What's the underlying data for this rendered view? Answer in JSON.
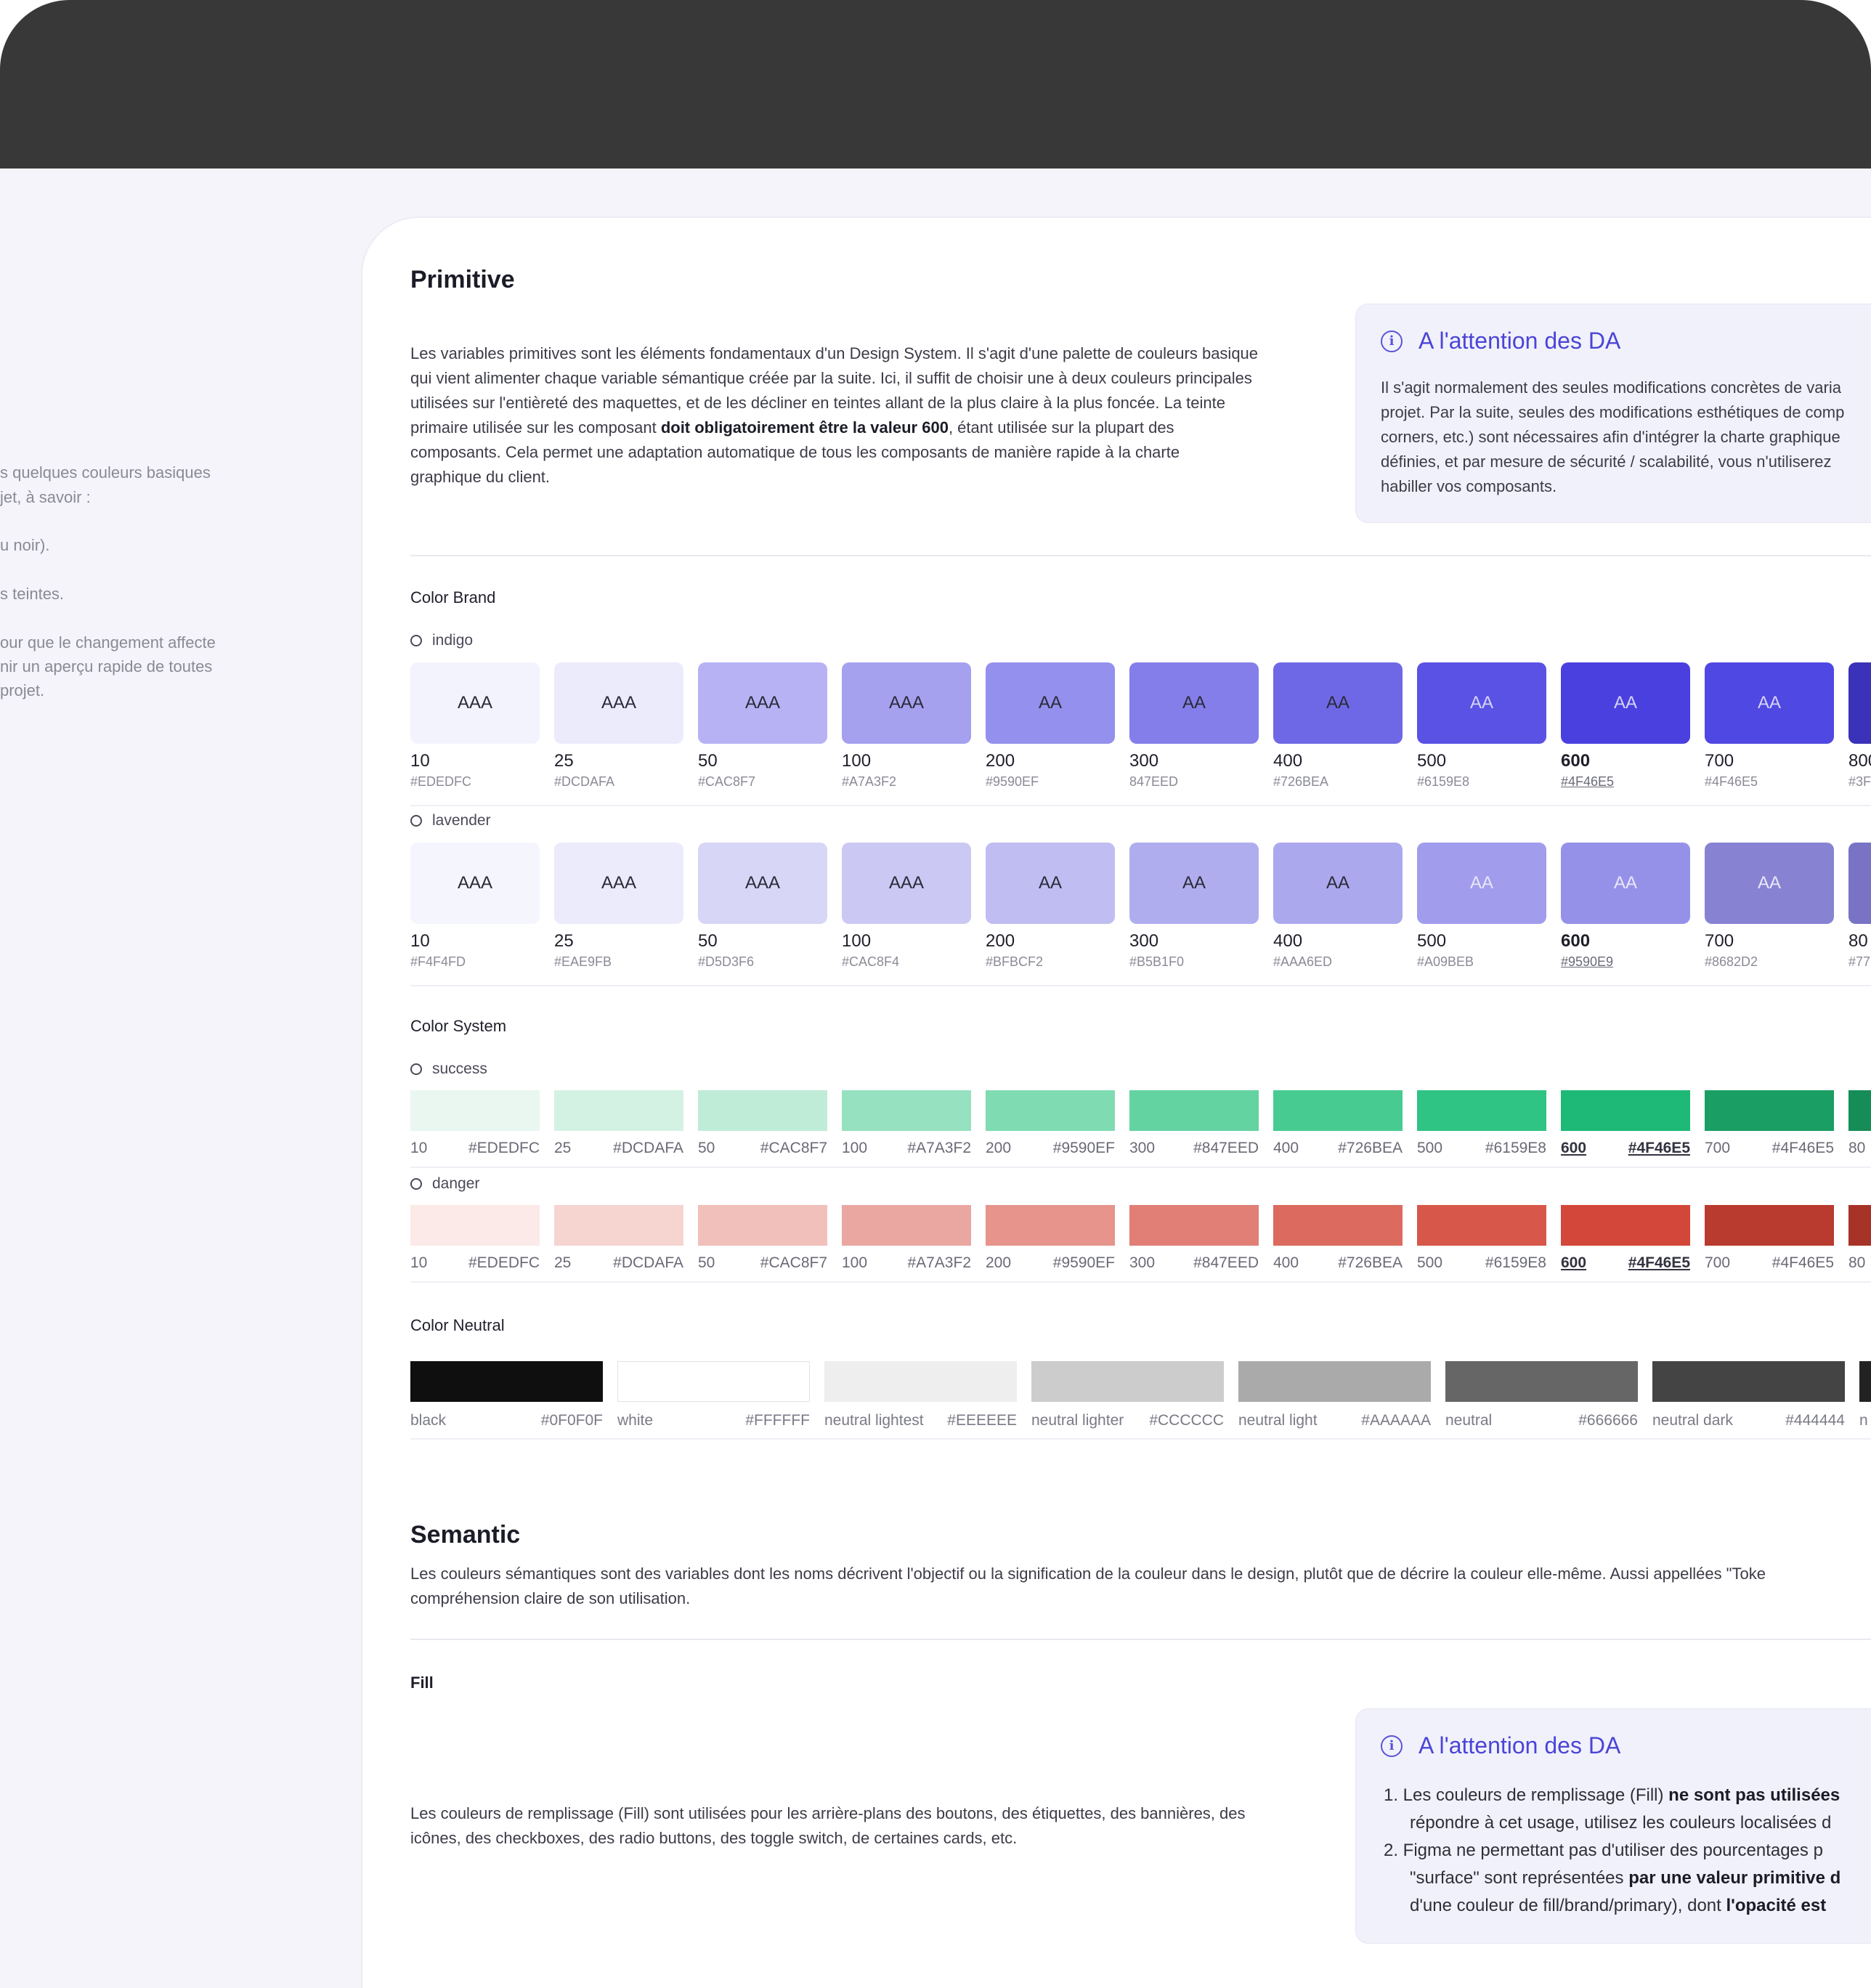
{
  "left_panel": {
    "lines": [
      "s quelques couleurs basiques",
      "jet, à savoir :",
      "u noir).",
      "s teintes.",
      "our que le changement affecte",
      "nir un aperçu rapide de toutes",
      " projet."
    ]
  },
  "primitive": {
    "title": "Primitive",
    "intro_lines": [
      "Les variables primitives sont les éléments fondamentaux d'un Design System. Il s'agit d'une palette de couleurs basique",
      "qui vient alimenter chaque variable sémantique créée par la suite. Ici, il suffit de choisir une à deux couleurs principales",
      "utilisées sur l'entièreté des maquettes, et de les décliner en teintes allant de la plus claire à la plus foncée. La teinte"
    ],
    "intro_l4_a": "primaire utilisée sur les composant ",
    "intro_l4_b": "doit obligatoirement être la valeur 600",
    "intro_l4_c": ", étant utilisée sur la plupart des",
    "intro_l5": "composants. Cela permet une adaptation automatique de tous les composants de manière rapide à la charte",
    "intro_l6": "graphique du client.",
    "callout": {
      "title": "A l'attention des DA",
      "lines": [
        "Il s'agit normalement des seules modifications concrètes de varia",
        "projet. Par la suite, seules des modifications esthétiques de comp",
        "corners, etc.) sont nécessaires afin d'intégrer la charte graphique",
        "définies, et par mesure de sécurité / scalabilité, vous n'utiliserez",
        "habiller vos composants."
      ]
    },
    "color_brand": {
      "label": "Color Brand",
      "groups": [
        {
          "name": "indigo",
          "swatches": [
            {
              "label": "AAA",
              "step": "10",
              "hex": "#EDEDFC",
              "color": "#f3f3fe",
              "text": "#2a2a38"
            },
            {
              "label": "AAA",
              "step": "25",
              "hex": "#DCDAFA",
              "color": "#ebebfc",
              "text": "#2a2a38"
            },
            {
              "label": "AAA",
              "step": "50",
              "hex": "#CAC8F7",
              "color": "#b6b2f4",
              "text": "#2a2a38"
            },
            {
              "label": "AAA",
              "step": "100",
              "hex": "#A7A3F2",
              "color": "#a5a1ef",
              "text": "#2a2a38"
            },
            {
              "label": "AA",
              "step": "200",
              "hex": "#9590EF",
              "color": "#9490ee",
              "text": "#2a2a38"
            },
            {
              "label": "AA",
              "step": "300",
              "hex": "847EED",
              "color": "#847eea",
              "text": "#2a2a38"
            },
            {
              "label": "AA",
              "step": "400",
              "hex": "#726BEA",
              "color": "#6f68e6",
              "text": "#2a2a38"
            },
            {
              "label": "AA",
              "step": "500",
              "hex": "#6159E8",
              "color": "#5a52e4",
              "text": "#d6d4f8"
            },
            {
              "label": "AA",
              "step": "600",
              "hex": "#4F46E5",
              "color": "#4a40e0",
              "text": "#d6d4f8",
              "primary": true
            },
            {
              "label": "AA",
              "step": "700",
              "hex": "#4F46E5",
              "color": "#5048e2",
              "text": "#d6d4f8"
            },
            {
              "label": "",
              "step": "800",
              "hex": "#3F",
              "color": "#3a32b8",
              "text": "#d6d4f8"
            }
          ]
        },
        {
          "name": "lavender",
          "swatches": [
            {
              "label": "AAA",
              "step": "10",
              "hex": "#F4F4FD",
              "color": "#f5f5fd",
              "text": "#2a2a38"
            },
            {
              "label": "AAA",
              "step": "25",
              "hex": "#EAE9FB",
              "color": "#ecebfb",
              "text": "#2a2a38"
            },
            {
              "label": "AAA",
              "step": "50",
              "hex": "#D5D3F6",
              "color": "#d8d6f6",
              "text": "#2a2a38"
            },
            {
              "label": "AAA",
              "step": "100",
              "hex": "#CAC8F4",
              "color": "#cbc8f4",
              "text": "#2a2a38"
            },
            {
              "label": "AA",
              "step": "200",
              "hex": "#BFBCF2",
              "color": "#c0bdf2",
              "text": "#2a2a38"
            },
            {
              "label": "AA",
              "step": "300",
              "hex": "#B5B1F0",
              "color": "#b0adef",
              "text": "#2a2a38"
            },
            {
              "label": "AA",
              "step": "400",
              "hex": "#AAA6ED",
              "color": "#aca8ed",
              "text": "#2a2a38"
            },
            {
              "label": "AA",
              "step": "500",
              "hex": "#A09BEB",
              "color": "#a19ceb",
              "text": "#e8e7fb"
            },
            {
              "label": "AA",
              "step": "600",
              "hex": "#9590E9",
              "color": "#9691e8",
              "text": "#e8e7fb",
              "primary": true
            },
            {
              "label": "AA",
              "step": "700",
              "hex": "#8682D2",
              "color": "#8783d2",
              "text": "#e8e7fb"
            },
            {
              "label": "",
              "step": "80",
              "hex": "#77",
              "color": "#7873c4",
              "text": "#e8e7fb"
            }
          ]
        }
      ]
    },
    "color_system": {
      "label": "Color System",
      "groups": [
        {
          "name": "success",
          "swatches": [
            {
              "step": "10",
              "hex": "#EDEDFC",
              "color": "#e9f7f0"
            },
            {
              "step": "25",
              "hex": "#DCDAFA",
              "color": "#d4f2e4"
            },
            {
              "step": "50",
              "hex": "#CAC8F7",
              "color": "#bfecd7"
            },
            {
              "step": "100",
              "hex": "#A7A3F2",
              "color": "#96e1c0"
            },
            {
              "step": "200",
              "hex": "#9590EF",
              "color": "#7fdbb2"
            },
            {
              "step": "300",
              "hex": "#847EED",
              "color": "#63d3a2"
            },
            {
              "step": "400",
              "hex": "#726BEA",
              "color": "#48cb91"
            },
            {
              "step": "500",
              "hex": "#6159E8",
              "color": "#2fc384"
            },
            {
              "step": "600",
              "hex": "#4F46E5",
              "color": "#1eb977",
              "primary": true
            },
            {
              "step": "700",
              "hex": "#4F46E5",
              "color": "#1a9e63"
            },
            {
              "step": "80",
              "hex": "",
              "color": "#168c57"
            }
          ]
        },
        {
          "name": "danger",
          "swatches": [
            {
              "step": "10",
              "hex": "#EDEDFC",
              "color": "#fbeae8"
            },
            {
              "step": "25",
              "hex": "#DCDAFA",
              "color": "#f6d4d0"
            },
            {
              "step": "50",
              "hex": "#CAC8F7",
              "color": "#f1c0ba"
            },
            {
              "step": "100",
              "hex": "#A7A3F2",
              "color": "#eaa7a1"
            },
            {
              "step": "200",
              "hex": "#9590EF",
              "color": "#e6948c"
            },
            {
              "step": "300",
              "hex": "#847EED",
              "color": "#e17f76"
            },
            {
              "step": "400",
              "hex": "#726BEA",
              "color": "#dc6a5f"
            },
            {
              "step": "500",
              "hex": "#6159E8",
              "color": "#d7574b"
            },
            {
              "step": "600",
              "hex": "#4F46E5",
              "color": "#d2473a",
              "primary": true
            },
            {
              "step": "700",
              "hex": "#4F46E5",
              "color": "#b93a2e"
            },
            {
              "step": "80",
              "hex": "",
              "color": "#a73328"
            }
          ]
        }
      ]
    },
    "color_neutral": {
      "label": "Color Neutral",
      "swatches": [
        {
          "name": "black",
          "hex": "#0F0F0F",
          "color": "#0f0f0f"
        },
        {
          "name": "white",
          "hex": "#FFFFFF",
          "color": "#ffffff"
        },
        {
          "name": "neutral lightest",
          "hex": "#EEEEEE",
          "color": "#eeeeee"
        },
        {
          "name": "neutral lighter",
          "hex": "#CCCCCC",
          "color": "#cccccc"
        },
        {
          "name": "neutral light",
          "hex": "#AAAAAA",
          "color": "#aaaaaa"
        },
        {
          "name": "neutral",
          "hex": "#666666",
          "color": "#666666"
        },
        {
          "name": "neutral dark",
          "hex": "#444444",
          "color": "#444444"
        },
        {
          "name": "n",
          "hex": "",
          "color": "#222222"
        }
      ]
    }
  },
  "semantic": {
    "title": "Semantic",
    "intro_l1": "Les couleurs sémantiques sont des variables dont les noms décrivent l'objectif ou la signification de la couleur dans le design, plutôt que de décrire la couleur elle-même. Aussi appellées \"Toke",
    "intro_l2": "compréhension claire de son utilisation.",
    "fill": {
      "label": "Fill",
      "text_l1": "Les couleurs de remplissage (Fill) sont utilisées pour les arrière-plans des boutons, des étiquettes, des bannières, des",
      "text_l2": "icônes, des checkboxes, des radio buttons, des toggle switch, de certaines cards, etc.",
      "callout": {
        "title": "A l'attention des DA",
        "item1_a": "1. Les couleurs de remplissage (Fill) ",
        "item1_b": "ne sont pas utilisées",
        "item1_l2": "répondre à cet usage, utilisez les couleurs localisées d",
        "item2_a": "2. Figma ne permettant pas d'utiliser des pourcentages p",
        "item2_l2_a": "\"surface\" sont représentées ",
        "item2_l2_b": "par une valeur primitive d",
        "item2_l3_a": "d'une couleur de fill/brand/primary), dont ",
        "item2_l3_b": "l'opacité est"
      }
    }
  }
}
